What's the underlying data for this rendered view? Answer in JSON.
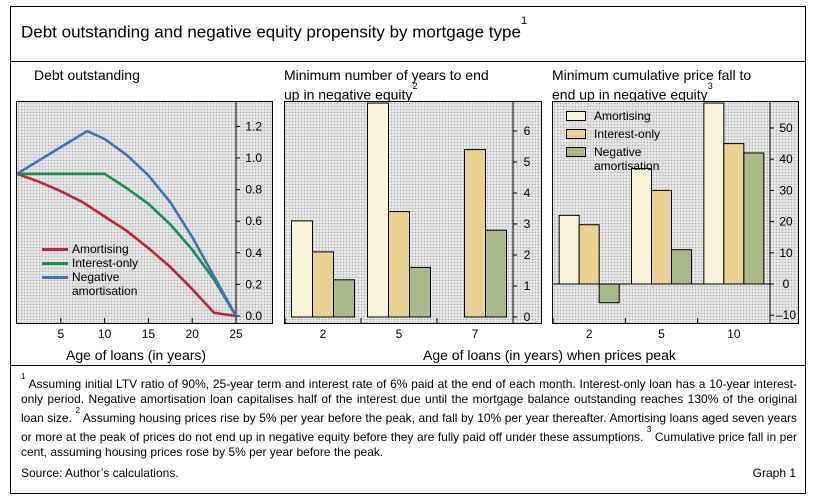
{
  "title": "Debt outstanding and negative equity propensity by mortgage type",
  "title_note": "1",
  "colors": {
    "amortising_line": "#c0262d",
    "interest_only_line": "#1b8f4c",
    "negative_line": "#3d73bb",
    "amortising_bar": "#f7f2d8",
    "interest_only_bar": "#e8d193",
    "negative_bar": "#a9b98a"
  },
  "panels": {
    "debt": {
      "title": "Debt outstanding"
    },
    "years": {
      "title_line1": "Minimum number of years to end",
      "title_line2": "up in negative equity",
      "note": "2"
    },
    "fall": {
      "title_line1": "Minimum cumulative price fall to",
      "title_line2": "end up in negative equity",
      "note": "3"
    }
  },
  "legend": {
    "amortising": "Amortising",
    "interest_only": "Interest-only",
    "negative_line1": "Negative",
    "negative_line2": "amortisation"
  },
  "axes": {
    "debt_xlabel": "Age of loans (in years)",
    "bars_xlabel": "Age of loans (in years) when prices peak"
  },
  "footnotes": {
    "n1": "1",
    "t1": " Assuming initial LTV ratio of 90%, 25-year term and interest rate of 6% paid at the end of each month. Interest-only loan has a 10-year interest-only period. Negative amortisation loan capitalises half of the interest due until the mortgage balance outstanding reaches 130% of the original loan size. ",
    "n2": "2",
    "t2": " Assuming housing prices rise by 5% per year before the peak, and fall by 10% per year thereafter. Amortising loans aged seven years or more at the peak of prices do not end up in negative equity before they are fully paid off under these assumptions. ",
    "n3": "3",
    "t3": " Cumulative price fall in per cent, assuming housing prices rose by 5% per year before the peak."
  },
  "source": "Source: Author’s calculations.",
  "graph_label": "Graph 1",
  "chart_data": [
    {
      "type": "line",
      "title": "Debt outstanding",
      "xlabel": "Age of loans (in years)",
      "ylabel": "",
      "xlim": [
        0,
        25
      ],
      "ylim": [
        0,
        1.4
      ],
      "xticks": [
        "5",
        "10",
        "15",
        "20",
        "25"
      ],
      "xtick_values": [
        5,
        10,
        15,
        20,
        25
      ],
      "yticks": [
        "0.0",
        "0.2",
        "0.4",
        "0.6",
        "0.8",
        "1.0",
        "1.2"
      ],
      "ytick_values": [
        0,
        0.2,
        0.4,
        0.6,
        0.8,
        1.0,
        1.2
      ],
      "series": [
        {
          "name": "Amortising",
          "x": [
            0,
            2.5,
            5,
            7.5,
            10,
            12.5,
            15,
            17.5,
            20,
            22.5,
            25
          ],
          "y": [
            0.9,
            0.85,
            0.79,
            0.72,
            0.63,
            0.54,
            0.43,
            0.31,
            0.17,
            0.02,
            0.0
          ]
        },
        {
          "name": "Interest-only",
          "x": [
            0,
            10,
            12.5,
            15,
            17.5,
            20,
            22.5,
            25
          ],
          "y": [
            0.9,
            0.9,
            0.81,
            0.71,
            0.58,
            0.42,
            0.23,
            0.0
          ]
        },
        {
          "name": "Negative amortisation",
          "x": [
            0,
            8,
            10,
            12.5,
            15,
            17.5,
            20,
            22.5,
            25
          ],
          "y": [
            0.9,
            1.17,
            1.12,
            1.02,
            0.89,
            0.72,
            0.5,
            0.25,
            0.0
          ]
        }
      ],
      "grid": false,
      "legend_position": "bottom-left"
    },
    {
      "type": "bar",
      "title": "Minimum number of years to end up in negative equity",
      "xlabel": "Age of loans (in years) when prices peak",
      "ylim": [
        0,
        7
      ],
      "yticks": [
        "0",
        "1",
        "2",
        "3",
        "4",
        "5",
        "6"
      ],
      "ytick_values": [
        0,
        1,
        2,
        3,
        4,
        5,
        6
      ],
      "categories": [
        "2",
        "5",
        "7"
      ],
      "series": [
        {
          "name": "Amortising",
          "values": [
            3.1,
            6.9,
            null
          ]
        },
        {
          "name": "Interest-only",
          "values": [
            2.1,
            3.4,
            5.4
          ]
        },
        {
          "name": "Negative amortisation",
          "values": [
            1.2,
            1.6,
            2.8
          ]
        }
      ]
    },
    {
      "type": "bar",
      "title": "Minimum cumulative price fall to end up in negative equity",
      "xlabel": "Age of loans (in years) when prices peak",
      "ylim": [
        -15,
        60
      ],
      "yticks": [
        "–10",
        "0",
        "10",
        "20",
        "30",
        "40",
        "50"
      ],
      "ytick_values": [
        -10,
        0,
        10,
        20,
        30,
        40,
        50
      ],
      "categories": [
        "2",
        "5",
        "10"
      ],
      "series": [
        {
          "name": "Amortising",
          "values": [
            22,
            37,
            58
          ]
        },
        {
          "name": "Interest-only",
          "values": [
            19,
            30,
            45
          ]
        },
        {
          "name": "Negative amortisation",
          "values": [
            -6,
            11,
            42
          ]
        }
      ],
      "legend_position": "top-left"
    }
  ]
}
